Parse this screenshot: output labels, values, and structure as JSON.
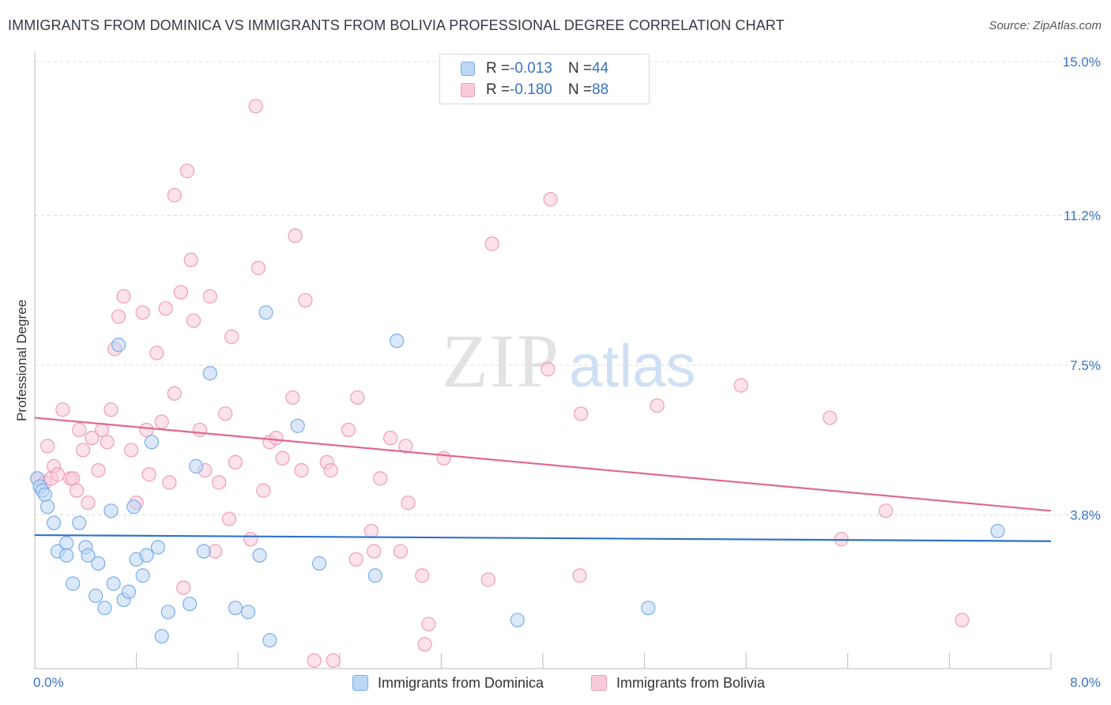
{
  "title": "IMMIGRANTS FROM DOMINICA VS IMMIGRANTS FROM BOLIVIA PROFESSIONAL DEGREE CORRELATION CHART",
  "source": "Source: ZipAtlas.com",
  "watermark": {
    "zip": "ZIP",
    "atlas": "atlas"
  },
  "legend": {
    "rows": [
      {
        "r_label": "R = ",
        "r_value": "-0.013",
        "n_label": "N = ",
        "n_value": "44"
      },
      {
        "r_label": "R = ",
        "r_value": "-0.180",
        "n_label": "N = ",
        "n_value": "88"
      }
    ]
  },
  "chart_data": {
    "type": "scatter",
    "title": "IMMIGRANTS FROM DOMINICA VS IMMIGRANTS FROM BOLIVIA PROFESSIONAL DEGREE CORRELATION CHART",
    "xlabel": "",
    "ylabel": "Professional Degree",
    "xlim": [
      0,
      8
    ],
    "ylim": [
      0,
      15
    ],
    "x_tick_labels": [
      "0.0%",
      "8.0%"
    ],
    "y_ticks": [
      3.8,
      7.5,
      11.2,
      15.0
    ],
    "y_tick_labels": [
      "3.8%",
      "7.5%",
      "11.2%",
      "15.0%"
    ],
    "grid": "horizontal dashed",
    "legend_placement": "top-center",
    "series": [
      {
        "name": "Immigrants from Dominica",
        "color": "#7baee8",
        "fill": "#bcd6f5",
        "line_color": "#2f72c9",
        "trend": [
          [
            0,
            3.3
          ],
          [
            8,
            3.15
          ]
        ],
        "points": [
          [
            0.02,
            4.7
          ],
          [
            0.04,
            4.5
          ],
          [
            0.06,
            4.4
          ],
          [
            0.08,
            4.3
          ],
          [
            0.1,
            4.0
          ],
          [
            0.15,
            3.6
          ],
          [
            0.18,
            2.9
          ],
          [
            0.25,
            3.1
          ],
          [
            0.25,
            2.8
          ],
          [
            0.3,
            2.1
          ],
          [
            0.35,
            3.6
          ],
          [
            0.4,
            3.0
          ],
          [
            0.42,
            2.8
          ],
          [
            0.48,
            1.8
          ],
          [
            0.5,
            2.6
          ],
          [
            0.55,
            1.5
          ],
          [
            0.6,
            3.9
          ],
          [
            0.62,
            2.1
          ],
          [
            0.66,
            8.0
          ],
          [
            0.7,
            1.7
          ],
          [
            0.74,
            1.9
          ],
          [
            0.78,
            4.0
          ],
          [
            0.8,
            2.7
          ],
          [
            0.85,
            2.3
          ],
          [
            0.88,
            2.8
          ],
          [
            0.92,
            5.6
          ],
          [
            0.97,
            3.0
          ],
          [
            1.0,
            0.8
          ],
          [
            1.05,
            1.4
          ],
          [
            1.22,
            1.6
          ],
          [
            1.27,
            5.0
          ],
          [
            1.33,
            2.9
          ],
          [
            1.38,
            7.3
          ],
          [
            1.58,
            1.5
          ],
          [
            1.68,
            1.4
          ],
          [
            1.77,
            2.8
          ],
          [
            1.82,
            8.8
          ],
          [
            1.85,
            0.7
          ],
          [
            2.07,
            6.0
          ],
          [
            2.24,
            2.6
          ],
          [
            2.68,
            2.3
          ],
          [
            2.85,
            8.1
          ],
          [
            3.8,
            1.2
          ],
          [
            4.83,
            1.5
          ],
          [
            7.58,
            3.4
          ]
        ]
      },
      {
        "name": "Immigrants from Bolivia",
        "color": "#ee9db8",
        "fill": "#f9cad9",
        "line_color": "#e06791",
        "trend": [
          [
            0,
            6.2
          ],
          [
            8,
            3.9
          ]
        ],
        "points": [
          [
            0.02,
            4.7
          ],
          [
            0.08,
            4.6
          ],
          [
            0.1,
            5.5
          ],
          [
            0.13,
            4.7
          ],
          [
            0.15,
            5.0
          ],
          [
            0.18,
            4.8
          ],
          [
            0.22,
            6.4
          ],
          [
            0.28,
            4.7
          ],
          [
            0.3,
            4.7
          ],
          [
            0.33,
            4.4
          ],
          [
            0.35,
            5.9
          ],
          [
            0.38,
            5.4
          ],
          [
            0.42,
            4.1
          ],
          [
            0.45,
            5.7
          ],
          [
            0.5,
            4.9
          ],
          [
            0.53,
            5.9
          ],
          [
            0.57,
            5.6
          ],
          [
            0.6,
            6.4
          ],
          [
            0.63,
            7.9
          ],
          [
            0.66,
            8.7
          ],
          [
            0.7,
            9.2
          ],
          [
            0.76,
            5.4
          ],
          [
            0.8,
            4.1
          ],
          [
            0.85,
            8.8
          ],
          [
            0.88,
            5.9
          ],
          [
            0.9,
            4.8
          ],
          [
            0.96,
            7.8
          ],
          [
            1.0,
            6.1
          ],
          [
            1.03,
            8.9
          ],
          [
            1.06,
            4.6
          ],
          [
            1.1,
            11.7
          ],
          [
            1.1,
            6.8
          ],
          [
            1.15,
            9.3
          ],
          [
            1.17,
            2.0
          ],
          [
            1.2,
            12.3
          ],
          [
            1.23,
            10.1
          ],
          [
            1.25,
            8.6
          ],
          [
            1.3,
            5.9
          ],
          [
            1.34,
            4.9
          ],
          [
            1.38,
            9.2
          ],
          [
            1.42,
            2.9
          ],
          [
            1.45,
            4.6
          ],
          [
            1.5,
            6.3
          ],
          [
            1.53,
            3.7
          ],
          [
            1.55,
            8.2
          ],
          [
            1.58,
            5.1
          ],
          [
            1.7,
            3.2
          ],
          [
            1.74,
            13.9
          ],
          [
            1.76,
            9.9
          ],
          [
            1.8,
            4.4
          ],
          [
            1.85,
            5.6
          ],
          [
            1.9,
            5.7
          ],
          [
            1.95,
            5.2
          ],
          [
            2.03,
            6.7
          ],
          [
            2.05,
            10.7
          ],
          [
            2.1,
            4.9
          ],
          [
            2.13,
            9.1
          ],
          [
            2.2,
            0.2
          ],
          [
            2.3,
            5.1
          ],
          [
            2.33,
            4.9
          ],
          [
            2.35,
            0.2
          ],
          [
            2.47,
            5.9
          ],
          [
            2.53,
            2.7
          ],
          [
            2.54,
            6.7
          ],
          [
            2.65,
            3.4
          ],
          [
            2.67,
            2.9
          ],
          [
            2.72,
            4.7
          ],
          [
            2.8,
            5.7
          ],
          [
            2.88,
            2.9
          ],
          [
            2.92,
            5.5
          ],
          [
            2.94,
            4.1
          ],
          [
            3.05,
            2.3
          ],
          [
            3.07,
            0.6
          ],
          [
            3.1,
            1.1
          ],
          [
            3.22,
            5.2
          ],
          [
            3.57,
            2.2
          ],
          [
            3.6,
            10.5
          ],
          [
            4.04,
            7.4
          ],
          [
            4.06,
            11.6
          ],
          [
            4.29,
            2.3
          ],
          [
            4.3,
            6.3
          ],
          [
            4.9,
            6.5
          ],
          [
            5.56,
            7.0
          ],
          [
            6.26,
            6.2
          ],
          [
            6.35,
            3.2
          ],
          [
            6.7,
            3.9
          ],
          [
            7.3,
            1.2
          ]
        ]
      }
    ]
  }
}
